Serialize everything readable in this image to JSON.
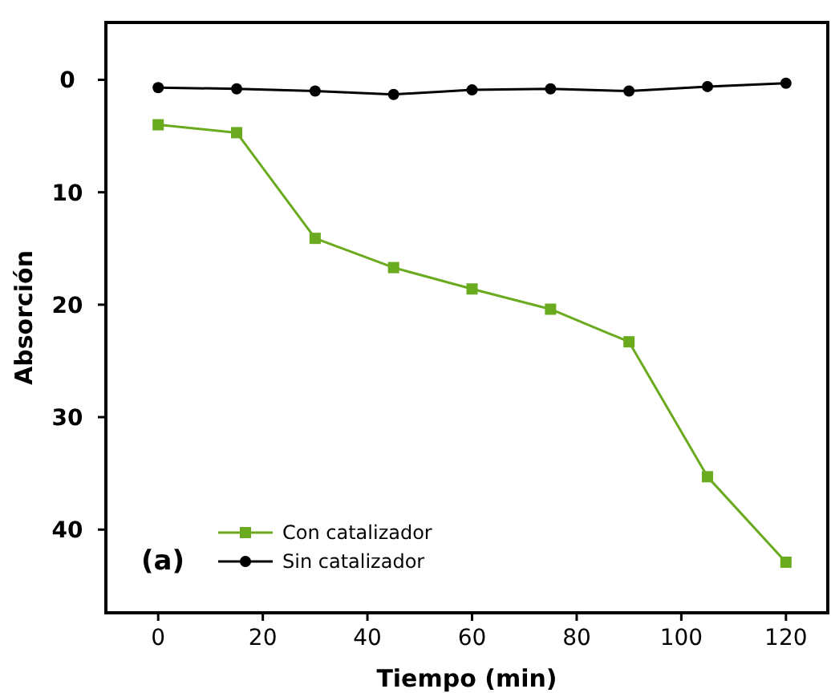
{
  "chart_data": {
    "type": "line",
    "xlabel": "Tiempo (min)",
    "ylabel": "Absorción",
    "x": [
      0,
      15,
      30,
      45,
      60,
      75,
      90,
      105,
      120
    ],
    "series": [
      {
        "name": "Con catalizador",
        "color": "#6aaa1e",
        "marker": "square",
        "values": [
          4.0,
          4.7,
          14.1,
          16.7,
          18.6,
          20.4,
          23.3,
          35.3,
          42.9
        ]
      },
      {
        "name": "Sin catalizador",
        "color": "#000000",
        "marker": "circle",
        "values": [
          0.7,
          0.8,
          1.0,
          1.3,
          0.9,
          0.8,
          1.0,
          0.6,
          0.3
        ]
      }
    ],
    "xlim": [
      -10,
      128
    ],
    "xticks": [
      0,
      20,
      40,
      60,
      80,
      100,
      120
    ],
    "ylim": [
      47.4,
      -5.1
    ],
    "yticks": [
      0,
      10,
      20,
      30,
      40
    ],
    "annotations": [
      "(a)"
    ],
    "legend": "bottom left",
    "grid": false,
    "line_style": "solid"
  }
}
